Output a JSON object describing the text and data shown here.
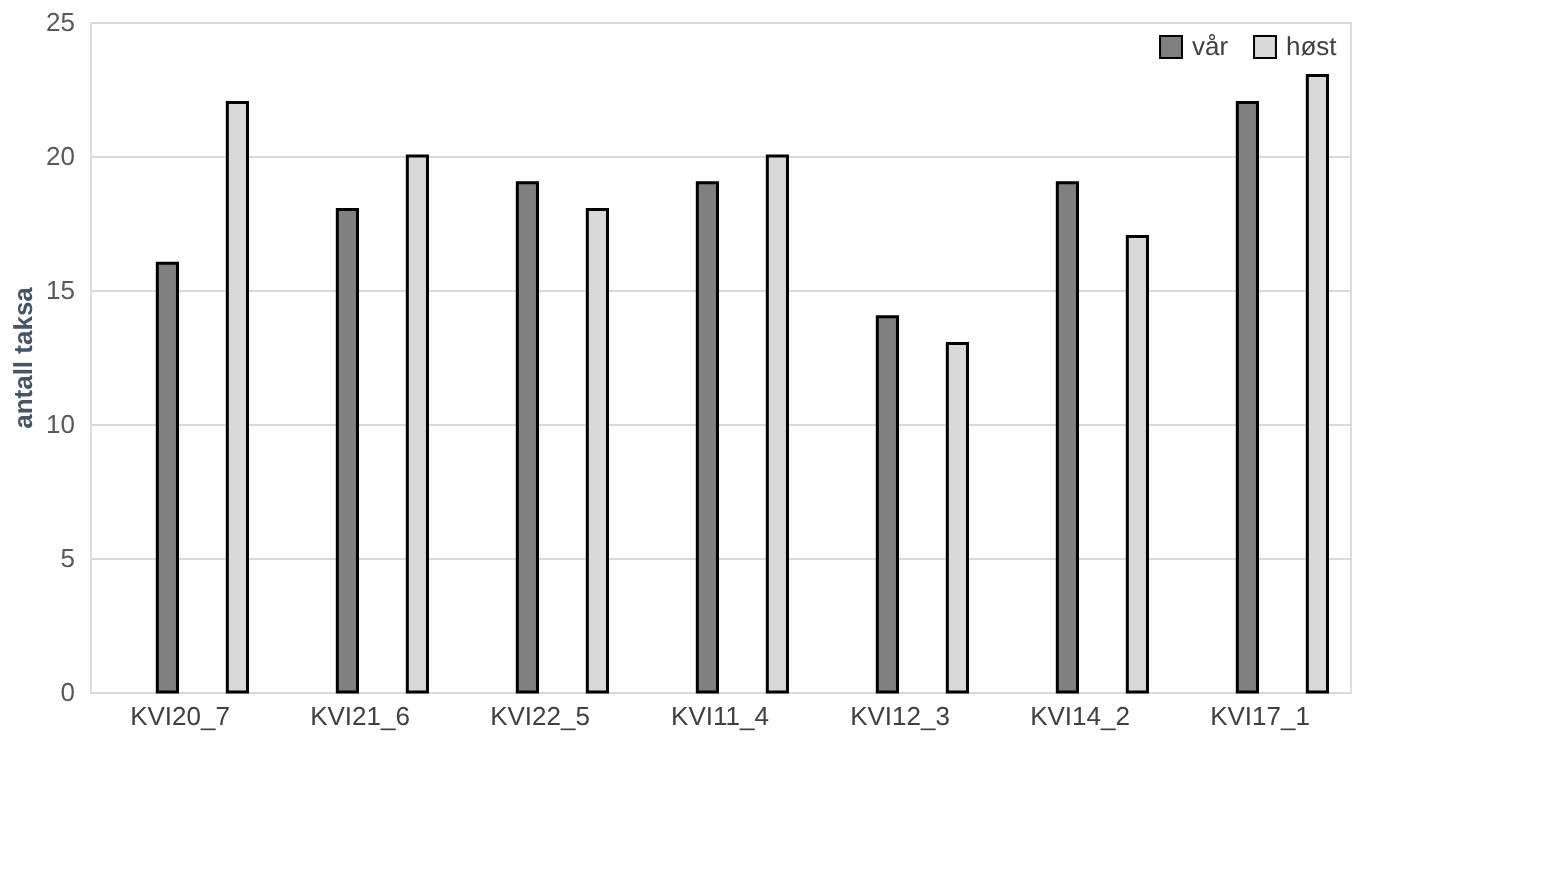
{
  "chart_data": {
    "type": "bar",
    "ylabel": "antall taksa",
    "categories": [
      "KVI20_7",
      "KVI21_6",
      "KVI22_5",
      "KVI11_4",
      "KVI12_3",
      "KVI14_2",
      "KVI17_1"
    ],
    "series": [
      {
        "name": "vår",
        "color": "#808080",
        "values": [
          16,
          18,
          19,
          19,
          14,
          19,
          22
        ]
      },
      {
        "name": "høst",
        "color": "#d9d9d9",
        "values": [
          22,
          20,
          18,
          20,
          13,
          17,
          23
        ]
      }
    ],
    "ylim": [
      0,
      25
    ],
    "yticks": [
      0,
      5,
      10,
      15,
      20,
      25
    ],
    "grid": "y",
    "legend": "top right"
  }
}
